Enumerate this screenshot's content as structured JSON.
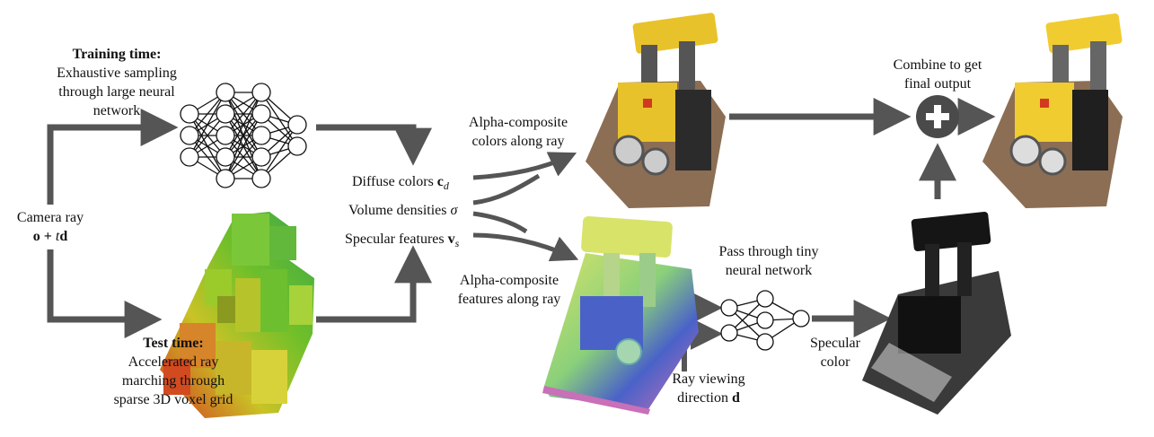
{
  "training": {
    "title": "Training time:",
    "line1": "Exhaustive sampling",
    "line2": "through large neural",
    "line3": "network"
  },
  "camera_ray": {
    "line1": "Camera ray",
    "formula": "o + t d"
  },
  "testing": {
    "title": "Test time:",
    "line1": "Accelerated ray",
    "line2": "marching through",
    "line3": "sparse 3D voxel grid"
  },
  "outputs": {
    "diffuse": "Diffuse colors",
    "diffuse_symbol": "c",
    "diffuse_sub": "d",
    "density": "Volume densities",
    "density_symbol": "σ",
    "specular": "Specular features",
    "specular_symbol": "v",
    "specular_sub": "s"
  },
  "composite_colors": {
    "line1": "Alpha-composite",
    "line2": "colors along ray"
  },
  "composite_features": {
    "line1": "Alpha-composite",
    "line2": "features along ray"
  },
  "tiny_net": {
    "line1": "Pass through tiny",
    "line2": "neural network"
  },
  "view_dir": {
    "line1": "Ray viewing",
    "line2": "direction",
    "symbol": "d"
  },
  "specular_color": {
    "line1": "Specular",
    "line2": "color"
  },
  "combine": {
    "line1": "Combine to get",
    "line2": "final output",
    "symbol": "+"
  },
  "colors": {
    "arrow": "#555555",
    "combine_circle": "#4a4a4a",
    "lego_yellow": "#e8c22a",
    "lego_dark": "#2b2b2b",
    "voxel_green": "#6fbf2a",
    "voxel_red": "#d23a1f"
  },
  "icons": {
    "large_net": "neural-network-icon",
    "tiny_net": "small-neural-network-icon",
    "combine": "plus-circle-icon"
  }
}
